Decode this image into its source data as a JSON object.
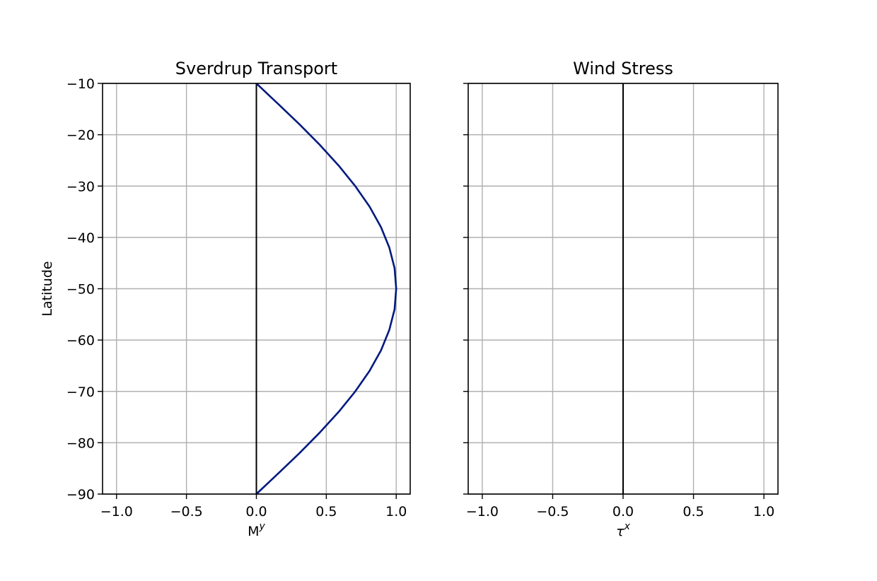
{
  "chart_data": [
    {
      "type": "line",
      "title": "Sverdrup Transport",
      "xlabel": "M",
      "xlabel_sup": "y",
      "ylabel": "Latitude",
      "xlim": [
        -1.1,
        1.1
      ],
      "ylim": [
        -90,
        -10
      ],
      "xticks": [
        "−1.0",
        "−0.5",
        "0.0",
        "0.5",
        "1.0"
      ],
      "xtick_values": [
        -1.0,
        -0.5,
        0.0,
        0.5,
        1.0
      ],
      "yticks": [
        "−10",
        "−20",
        "−30",
        "−40",
        "−50",
        "−60",
        "−70",
        "−80",
        "−90"
      ],
      "ytick_values": [
        -10,
        -20,
        -30,
        -40,
        -50,
        -60,
        -70,
        -80,
        -90
      ],
      "grid": true,
      "zero_line": {
        "x": 0,
        "color": "#000000"
      },
      "series": [
        {
          "color": "#001a80",
          "x": [
            0.0,
            0.156,
            0.309,
            0.454,
            0.588,
            0.707,
            0.809,
            0.891,
            0.951,
            0.988,
            1.0,
            0.988,
            0.951,
            0.891,
            0.809,
            0.707,
            0.588,
            0.454,
            0.309,
            0.156,
            0.0
          ],
          "y": [
            -10,
            -14,
            -18,
            -22,
            -26,
            -30,
            -34,
            -38,
            -42,
            -46,
            -50,
            -54,
            -58,
            -62,
            -66,
            -70,
            -74,
            -78,
            -82,
            -86,
            -90
          ]
        }
      ]
    },
    {
      "type": "line",
      "title": "Wind Stress",
      "xlabel": "τ",
      "xlabel_sup": "x",
      "xlim": [
        -1.1,
        1.1
      ],
      "ylim": [
        -90,
        -10
      ],
      "xticks": [
        "−1.0",
        "−0.5",
        "0.0",
        "0.5",
        "1.0"
      ],
      "xtick_values": [
        -1.0,
        -0.5,
        0.0,
        0.5,
        1.0
      ],
      "ytick_values": [
        -10,
        -20,
        -30,
        -40,
        -50,
        -60,
        -70,
        -80,
        -90
      ],
      "grid": true,
      "zero_line": {
        "x": 0,
        "color": "#000000"
      },
      "series": []
    }
  ]
}
